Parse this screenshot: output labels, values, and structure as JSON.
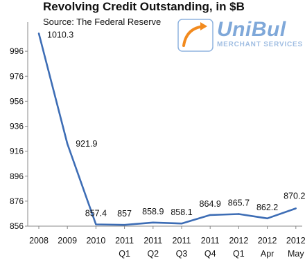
{
  "header": {
    "title": "Revolving Credit Outstanding, in $B",
    "subtitle": "Source: The Federal Reserve"
  },
  "logo": {
    "name": "UniBul",
    "tagline": "MERCHANT SERVICES",
    "color": "#7fa8d9"
  },
  "chart_data": {
    "type": "line",
    "title": "Revolving Credit Outstanding, in $B",
    "subtitle": "Source: The Federal Reserve",
    "xlabel": "",
    "ylabel": "",
    "categories": [
      [
        "2008",
        ""
      ],
      [
        "2009",
        ""
      ],
      [
        "2010",
        ""
      ],
      [
        "2011",
        "Q1"
      ],
      [
        "2011",
        "Q2"
      ],
      [
        "2011",
        "Q3"
      ],
      [
        "2011",
        "Q4"
      ],
      [
        "2012",
        "Q1"
      ],
      [
        "2012",
        "Apr"
      ],
      [
        "2012",
        "May"
      ]
    ],
    "series": [
      {
        "values": [
          1010.3,
          921.9,
          857.4,
          857,
          858.9,
          858.1,
          864.9,
          865.7,
          862.2,
          870.2
        ],
        "labels": [
          "1010.3",
          "921.9",
          "857.4",
          "857",
          "858.9",
          "858.1",
          "864.9",
          "865.7",
          "862.2",
          "870.2"
        ],
        "color": "#3d6db5"
      }
    ],
    "yticks": [
      856,
      876,
      896,
      916,
      936,
      956,
      976,
      996
    ],
    "ylim": [
      856,
      1016
    ],
    "grid": false,
    "legend": "none"
  }
}
